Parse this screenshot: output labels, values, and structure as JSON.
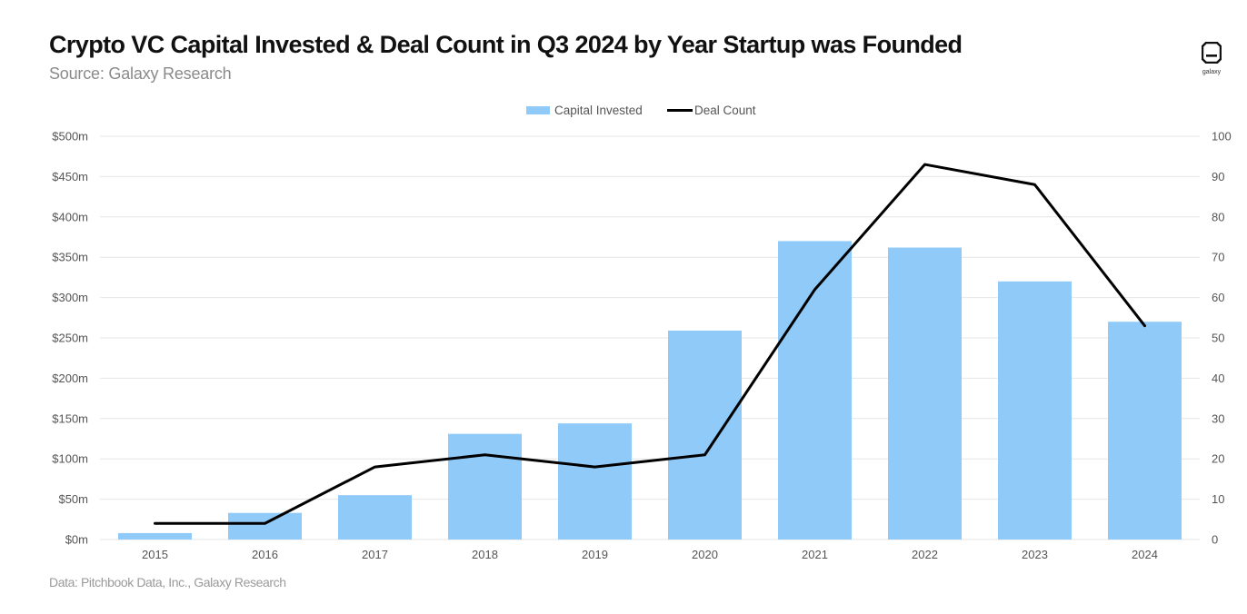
{
  "header": {
    "title": "Crypto VC Capital Invested & Deal Count in Q3 2024 by Year Startup was Founded",
    "subtitle": "Source: Galaxy Research"
  },
  "footer": {
    "note": "Data: Pitchbook Data, Inc., Galaxy Research"
  },
  "logo": {
    "word": "galaxy",
    "icon": "galaxy-logo-icon"
  },
  "colors": {
    "bar": "#90CAF9",
    "line": "#000000",
    "grid": "#e6e6e6"
  },
  "chart_data": {
    "type": "bar",
    "categories": [
      "2015",
      "2016",
      "2017",
      "2018",
      "2019",
      "2020",
      "2021",
      "2022",
      "2023",
      "2024"
    ],
    "series": [
      {
        "name": "Capital Invested",
        "type": "bar",
        "axis": "left",
        "values": [
          8,
          33,
          55,
          131,
          144,
          259,
          370,
          362,
          320,
          270
        ]
      },
      {
        "name": "Deal Count",
        "type": "line",
        "axis": "right",
        "values": [
          4,
          4,
          18,
          21,
          18,
          21,
          62,
          93,
          88,
          53
        ]
      }
    ],
    "left_axis": {
      "ylim": [
        0,
        500
      ],
      "ticks": [
        0,
        50,
        100,
        150,
        200,
        250,
        300,
        350,
        400,
        450,
        500
      ],
      "tick_labels": [
        "$0m",
        "$50m",
        "$100m",
        "$150m",
        "$200m",
        "$250m",
        "$300m",
        "$350m",
        "$400m",
        "$450m",
        "$500m"
      ]
    },
    "right_axis": {
      "ylim": [
        0,
        100
      ],
      "ticks": [
        0,
        10,
        20,
        30,
        40,
        50,
        60,
        70,
        80,
        90,
        100
      ],
      "tick_labels": [
        "0",
        "10",
        "20",
        "30",
        "40",
        "50",
        "60",
        "70",
        "80",
        "90",
        "100"
      ]
    },
    "grid": true,
    "legend_position": "top-center"
  }
}
